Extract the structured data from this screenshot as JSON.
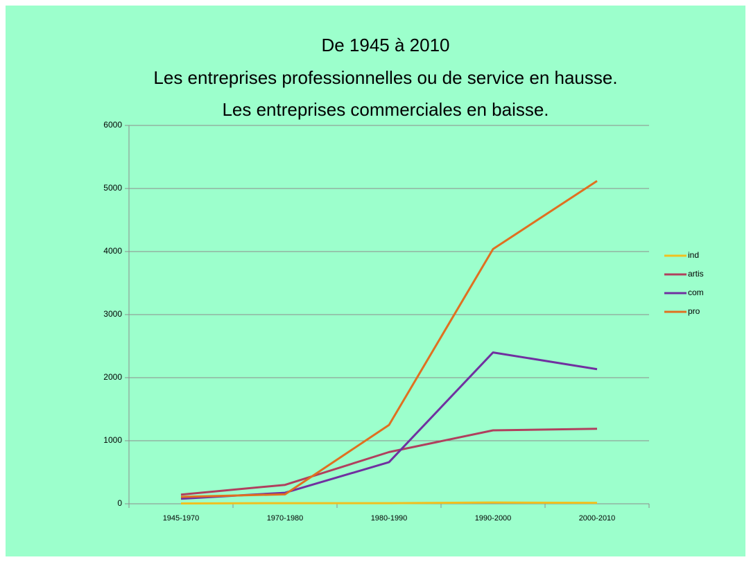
{
  "chart_data": {
    "type": "line",
    "title": [
      "De 1945 à 2010",
      "Les entreprises professionnelles ou de service en hausse.",
      "Les entreprises commerciales en baisse."
    ],
    "categories": [
      "1945-1970",
      "1970-1980",
      "1980-1990",
      "1990-2000",
      "2000-2010"
    ],
    "series": [
      {
        "name": "ind",
        "color": "#f0c020",
        "values": [
          5,
          10,
          10,
          20,
          15
        ]
      },
      {
        "name": "artis",
        "color": "#b0405e",
        "values": [
          145,
          300,
          820,
          1165,
          1190
        ]
      },
      {
        "name": "com",
        "color": "#7030a0",
        "values": [
          80,
          175,
          660,
          2400,
          2135
        ]
      },
      {
        "name": "pro",
        "color": "#e07020",
        "values": [
          110,
          150,
          1250,
          4040,
          5120
        ]
      }
    ],
    "ylim": [
      0,
      6000
    ],
    "yticks": [
      0,
      1000,
      2000,
      3000,
      4000,
      5000,
      6000
    ],
    "grid": true,
    "legend": "right"
  }
}
